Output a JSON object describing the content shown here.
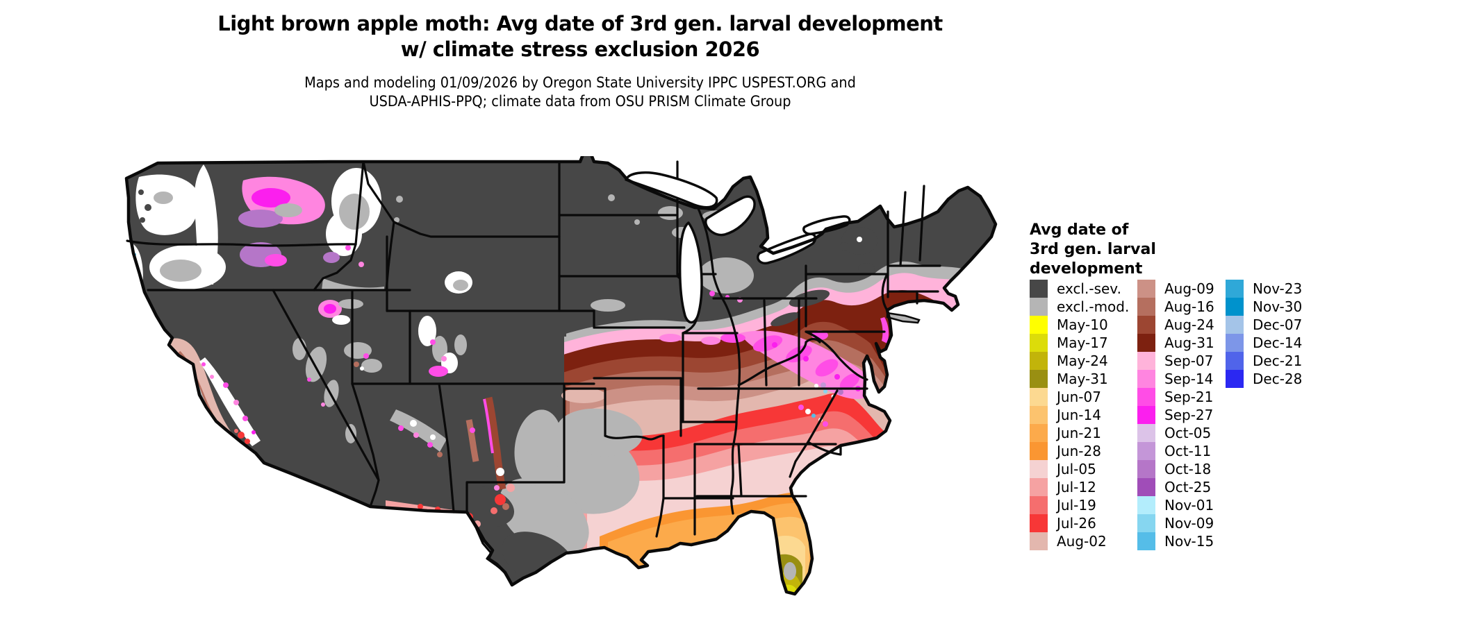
{
  "title": {
    "line1": "Light brown apple moth: Avg date of 3rd gen. larval development",
    "line2": "w/ climate stress exclusion 2026"
  },
  "subtitle": {
    "line1": "Maps and modeling 01/09/2026 by Oregon State University IPPC USPEST.ORG and",
    "line2": "USDA-APHIS-PPQ; climate data from OSU PRISM Climate Group"
  },
  "legend": {
    "title_line1": "Avg date of",
    "title_line2": "3rd gen. larval",
    "title_line3": "development",
    "columns": [
      [
        {
          "label": "excl.-sev.",
          "color": "#474747"
        },
        {
          "label": "excl.-mod.",
          "color": "#b5b5b5"
        },
        {
          "label": "May-10",
          "color": "#ffff00"
        },
        {
          "label": "May-17",
          "color": "#dcdc0a"
        },
        {
          "label": "May-24",
          "color": "#c2b40a"
        },
        {
          "label": "May-31",
          "color": "#998f12"
        },
        {
          "label": "Jun-07",
          "color": "#fcd991"
        },
        {
          "label": "Jun-14",
          "color": "#fcc36e"
        },
        {
          "label": "Jun-21",
          "color": "#fcaa4b"
        },
        {
          "label": "Jun-28",
          "color": "#fa9632"
        },
        {
          "label": "Jul-05",
          "color": "#f5d2d2"
        },
        {
          "label": "Jul-12",
          "color": "#f5a2a2"
        },
        {
          "label": "Jul-19",
          "color": "#f56e6e"
        },
        {
          "label": "Jul-26",
          "color": "#f73737"
        },
        {
          "label": "Aug-02",
          "color": "#e3b7ae"
        }
      ],
      [
        {
          "label": "Aug-09",
          "color": "#cc9186"
        },
        {
          "label": "Aug-16",
          "color": "#b56f5f"
        },
        {
          "label": "Aug-24",
          "color": "#9c4632"
        },
        {
          "label": "Aug-31",
          "color": "#7d2110"
        },
        {
          "label": "Sep-07",
          "color": "#ffb3da"
        },
        {
          "label": "Sep-14",
          "color": "#ff85e0"
        },
        {
          "label": "Sep-21",
          "color": "#ff4de6"
        },
        {
          "label": "Sep-27",
          "color": "#fb1fee"
        },
        {
          "label": "Oct-05",
          "color": "#dcc3e8"
        },
        {
          "label": "Oct-11",
          "color": "#c496d8"
        },
        {
          "label": "Oct-18",
          "color": "#b576c8"
        },
        {
          "label": "Oct-25",
          "color": "#a04db8"
        },
        {
          "label": "Nov-01",
          "color": "#b3edfc"
        },
        {
          "label": "Nov-09",
          "color": "#86d6f0"
        },
        {
          "label": "Nov-15",
          "color": "#55bde8"
        }
      ],
      [
        {
          "label": "Nov-23",
          "color": "#2fa8d8"
        },
        {
          "label": "Nov-30",
          "color": "#0092cc"
        },
        {
          "label": "Dec-07",
          "color": "#a4c4e8"
        },
        {
          "label": "Dec-14",
          "color": "#7d96e8"
        },
        {
          "label": "Dec-21",
          "color": "#5064ea"
        },
        {
          "label": "Dec-28",
          "color": "#2b28f2"
        }
      ]
    ]
  },
  "palette": {
    "sev": "#474747",
    "mod": "#b5b5b5",
    "nodata": "#ffffff",
    "may10": "#ffff00",
    "may17": "#dcdc0a",
    "may24": "#c2b40a",
    "may31": "#998f12",
    "jun07": "#fcd991",
    "jun14": "#fcc36e",
    "jun21": "#fcaa4b",
    "jun28": "#fa9632",
    "jul05": "#f5d2d2",
    "jul12": "#f5a2a2",
    "jul19": "#f56e6e",
    "jul26": "#f73737",
    "aug02": "#e3b7ae",
    "aug09": "#cc9186",
    "aug16": "#b56f5f",
    "aug24": "#9c4632",
    "aug31": "#7d2110",
    "sep07": "#ffb3da",
    "sep14": "#ff85e0",
    "sep21": "#ff4de6",
    "sep27": "#fb1fee",
    "oct05": "#dcc3e8",
    "oct11": "#c496d8",
    "oct18": "#b576c8",
    "oct25": "#a04db8",
    "nov01": "#b3edfc",
    "nov09": "#86d6f0",
    "nov15": "#55bde8",
    "nov23": "#2fa8d8",
    "border": "#0a0a0a"
  }
}
